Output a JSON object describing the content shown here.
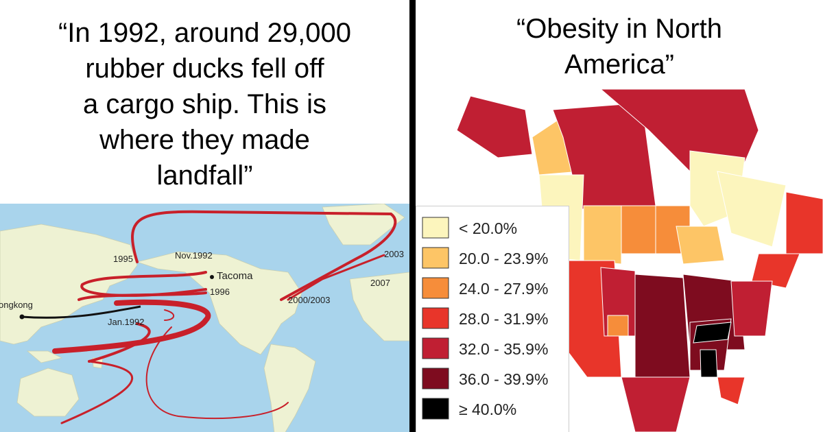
{
  "left": {
    "caption_lines": [
      "“In 1992, around 29,000",
      "rubber ducks fell off",
      "a cargo ship. This is",
      "where they made",
      "landfall”"
    ],
    "map_labels": [
      "1995",
      "Nov.1992",
      "Tacoma",
      "1996",
      "2003",
      "2007",
      "2000/2003",
      "ongkong",
      "Jan.1992"
    ]
  },
  "right": {
    "caption_lines": [
      "“Obesity in North",
      "America”"
    ],
    "legend": [
      {
        "label": "< 20.0%",
        "color": "#fcf5bd"
      },
      {
        "label": "20.0 - 23.9%",
        "color": "#fdc566"
      },
      {
        "label": "24.0 - 27.9%",
        "color": "#f68d3a"
      },
      {
        "label": "28.0 - 31.9%",
        "color": "#e8352a"
      },
      {
        "label": "32.0 - 35.9%",
        "color": "#c01f33"
      },
      {
        "label": "36.0 - 39.9%",
        "color": "#7e0c1f"
      },
      {
        "label": "≥ 40.0%",
        "color": "#000000"
      }
    ]
  }
}
